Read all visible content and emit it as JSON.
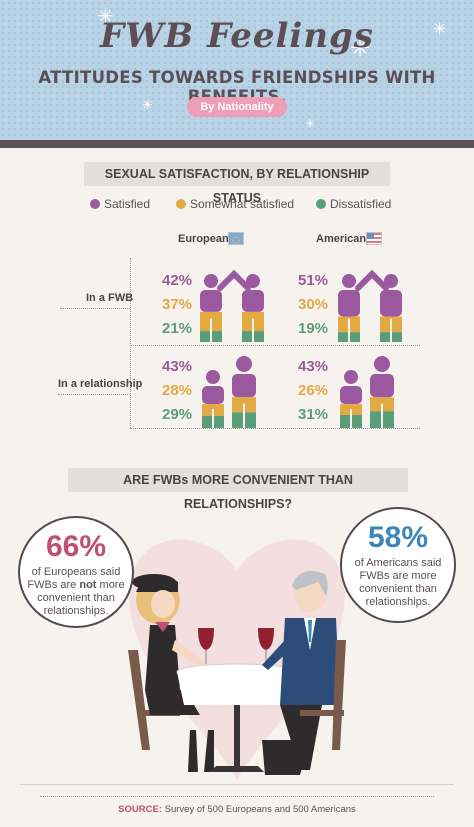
{
  "header": {
    "title": "FWB Feelings",
    "subtitle": "ATTITUDES TOWARDS FRIENDSHIPS WITH BENEFITS,",
    "badge": "By Nationality"
  },
  "section1": {
    "heading": "SEXUAL SATISFACTION, BY RELATIONSHIP STATUS",
    "legend": [
      {
        "label": "Satisfied",
        "color": "#9b5a9f"
      },
      {
        "label": "Somewhat satisfied",
        "color": "#e3a943"
      },
      {
        "label": "Dissatisfied",
        "color": "#5a9e79"
      }
    ],
    "columns": [
      "Europeans",
      "Americans"
    ],
    "rows": [
      "In a FWB",
      "In a relationship"
    ]
  },
  "chart_data": {
    "type": "table",
    "title": "SEXUAL SATISFACTION, BY RELATIONSHIP STATUS",
    "columns": [
      "Europeans",
      "Americans"
    ],
    "rows": [
      "In a FWB",
      "In a relationship"
    ],
    "categories": [
      "Satisfied",
      "Somewhat satisfied",
      "Dissatisfied"
    ],
    "values": {
      "In a FWB": {
        "Europeans": {
          "Satisfied": 42,
          "Somewhat satisfied": 37,
          "Dissatisfied": 21
        },
        "Americans": {
          "Satisfied": 51,
          "Somewhat satisfied": 30,
          "Dissatisfied": 19
        }
      },
      "In a relationship": {
        "Europeans": {
          "Satisfied": 43,
          "Somewhat satisfied": 28,
          "Dissatisfied": 29
        },
        "Americans": {
          "Satisfied": 43,
          "Somewhat satisfied": 26,
          "Dissatisfied": 31
        }
      }
    },
    "text": {
      "fwb_eu": [
        "42%",
        "37%",
        "21%"
      ],
      "fwb_us": [
        "51%",
        "30%",
        "19%"
      ],
      "rel_eu": [
        "43%",
        "28%",
        "29%"
      ],
      "rel_us": [
        "43%",
        "26%",
        "31%"
      ]
    },
    "unit": "%"
  },
  "section2": {
    "heading": "ARE FWBs MORE CONVENIENT THAN RELATIONSHIPS?",
    "left": {
      "pct": "66%",
      "pct_color": "#c0506f",
      "line1": "of Europeans said",
      "line2a": "FWBs are ",
      "line2b": "not",
      "line2c": " more",
      "line3": "convenient than",
      "line4": "relationships."
    },
    "right": {
      "pct": "58%",
      "pct_color": "#3f86b8",
      "line1": "of Americans said",
      "line2": "FWBs are more",
      "line3": "convenient than",
      "line4": "relationships."
    }
  },
  "footer": {
    "source_label": "SOURCE:",
    "source_text": " Survey of 500 Europeans and 500 Americans"
  },
  "colors": {
    "satisfied": "#9b5a9f",
    "somewhat": "#e3a943",
    "dissatisfied": "#5a9e79",
    "header_bg": "#b9d3e6"
  }
}
